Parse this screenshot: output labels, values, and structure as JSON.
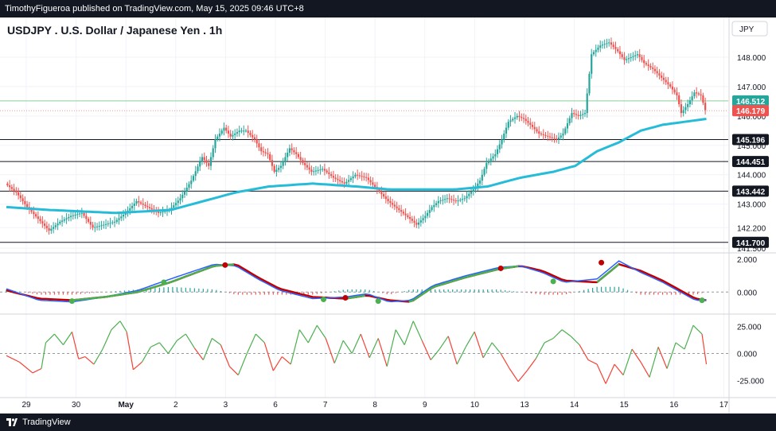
{
  "header": {
    "published_text": "TimothyFigueroa published on TradingView.com, May 15, 2025 09:46 UTC+8"
  },
  "footer": {
    "brand": "TradingView",
    "logo_icon": "tradingview-logo-icon"
  },
  "chart_data": {
    "type": "candlestick",
    "title": "USDJPY . U.S. Dollar / Japanese Yen . 1h",
    "currency": "JPY",
    "colors": {
      "up": "#26a69a",
      "down": "#ef5350",
      "ma": "#26bcd7",
      "tsi_up": "#4caf50",
      "tsi_down": "#f44336",
      "macd_fast": "#2962ff",
      "macd_slow": "#c00000"
    },
    "price_axis": {
      "ylim": [
        141.45,
        149.35
      ],
      "ticks": [
        "148.000",
        "147.000",
        "146.000",
        "145.000",
        "144.000",
        "143.000",
        "142.200",
        "141.500"
      ]
    },
    "x_axis_labels": [
      "29",
      "30",
      "May",
      "2",
      "3",
      "6",
      "7",
      "8",
      "9",
      "10",
      "13",
      "14",
      "15",
      "16",
      "17"
    ],
    "price_labels": [
      {
        "value": 146.512,
        "text": "146.512",
        "color": "#26a69a",
        "line": "#8ccf9a"
      },
      {
        "value": 146.179,
        "text": "146.179",
        "color": "#ef5350",
        "line": "#ef9a9a"
      }
    ],
    "horizontal_levels": [
      {
        "value": 145.196,
        "text": "145.196"
      },
      {
        "value": 144.451,
        "text": "144.451"
      },
      {
        "value": 143.442,
        "text": "143.442"
      },
      {
        "value": 141.7,
        "text": "141.700"
      }
    ],
    "price_path": [
      [
        0,
        143.7
      ],
      [
        5,
        143.4
      ],
      [
        10,
        142.9
      ],
      [
        15,
        142.5
      ],
      [
        20,
        142.1
      ],
      [
        25,
        142.4
      ],
      [
        30,
        142.6
      ],
      [
        35,
        142.7
      ],
      [
        40,
        142.2
      ],
      [
        45,
        142.3
      ],
      [
        50,
        142.4
      ],
      [
        55,
        142.7
      ],
      [
        60,
        143.1
      ],
      [
        65,
        142.9
      ],
      [
        70,
        142.7
      ],
      [
        75,
        142.8
      ],
      [
        80,
        143.2
      ],
      [
        85,
        143.8
      ],
      [
        90,
        144.6
      ],
      [
        93,
        144.3
      ],
      [
        96,
        145.2
      ],
      [
        100,
        145.6
      ],
      [
        103,
        145.3
      ],
      [
        107,
        145.5
      ],
      [
        110,
        145.5
      ],
      [
        114,
        145.2
      ],
      [
        117,
        144.8
      ],
      [
        120,
        144.7
      ],
      [
        123,
        144.1
      ],
      [
        126,
        144.3
      ],
      [
        130,
        144.9
      ],
      [
        133,
        144.7
      ],
      [
        136,
        144.4
      ],
      [
        140,
        144.1
      ],
      [
        145,
        144.2
      ],
      [
        150,
        143.9
      ],
      [
        155,
        143.7
      ],
      [
        160,
        144.0
      ],
      [
        165,
        143.9
      ],
      [
        170,
        143.5
      ],
      [
        175,
        143.1
      ],
      [
        180,
        142.8
      ],
      [
        185,
        142.5
      ],
      [
        188,
        142.3
      ],
      [
        192,
        142.6
      ],
      [
        195,
        142.9
      ],
      [
        198,
        143.1
      ],
      [
        202,
        143.2
      ],
      [
        206,
        143.1
      ],
      [
        210,
        143.2
      ],
      [
        214,
        143.5
      ],
      [
        217,
        143.8
      ],
      [
        220,
        144.4
      ],
      [
        224,
        144.7
      ],
      [
        227,
        145.2
      ],
      [
        230,
        145.8
      ],
      [
        234,
        146.0
      ],
      [
        237,
        145.9
      ],
      [
        240,
        145.7
      ],
      [
        244,
        145.4
      ],
      [
        248,
        145.3
      ],
      [
        252,
        145.2
      ],
      [
        255,
        145.4
      ],
      [
        259,
        146.1
      ],
      [
        262,
        146.0
      ],
      [
        265,
        146.1
      ],
      [
        268,
        148.1
      ],
      [
        272,
        148.4
      ],
      [
        276,
        148.5
      ],
      [
        280,
        148.2
      ],
      [
        283,
        147.9
      ],
      [
        286,
        148.0
      ],
      [
        289,
        148.1
      ],
      [
        292,
        147.8
      ],
      [
        296,
        147.6
      ],
      [
        300,
        147.3
      ],
      [
        304,
        147.0
      ],
      [
        307,
        146.7
      ],
      [
        309,
        146.1
      ],
      [
        312,
        146.4
      ],
      [
        315,
        146.8
      ],
      [
        318,
        146.7
      ],
      [
        320,
        146.2
      ]
    ],
    "ma_path": [
      [
        0,
        142.9
      ],
      [
        20,
        142.8
      ],
      [
        50,
        142.7
      ],
      [
        75,
        142.8
      ],
      [
        90,
        143.1
      ],
      [
        105,
        143.4
      ],
      [
        120,
        143.6
      ],
      [
        140,
        143.7
      ],
      [
        160,
        143.6
      ],
      [
        175,
        143.5
      ],
      [
        190,
        143.5
      ],
      [
        205,
        143.5
      ],
      [
        220,
        143.6
      ],
      [
        235,
        143.9
      ],
      [
        250,
        144.1
      ],
      [
        260,
        144.3
      ],
      [
        270,
        144.8
      ],
      [
        280,
        145.1
      ],
      [
        290,
        145.5
      ],
      [
        300,
        145.7
      ],
      [
        310,
        145.8
      ],
      [
        320,
        145.9
      ]
    ],
    "macd": {
      "ylim": [
        -1.2,
        2.2
      ],
      "ticks": [
        "2.000",
        "0.000"
      ],
      "fast_path": [
        [
          0,
          0.2
        ],
        [
          15,
          -0.5
        ],
        [
          30,
          -0.6
        ],
        [
          45,
          -0.3
        ],
        [
          60,
          0.1
        ],
        [
          75,
          0.8
        ],
        [
          95,
          1.7
        ],
        [
          105,
          1.6
        ],
        [
          115,
          0.8
        ],
        [
          125,
          0.1
        ],
        [
          140,
          -0.4
        ],
        [
          155,
          -0.3
        ],
        [
          165,
          -0.1
        ],
        [
          175,
          -0.6
        ],
        [
          185,
          -0.5
        ],
        [
          195,
          0.4
        ],
        [
          210,
          1.0
        ],
        [
          225,
          1.5
        ],
        [
          235,
          1.6
        ],
        [
          245,
          1.2
        ],
        [
          255,
          0.6
        ],
        [
          270,
          0.8
        ],
        [
          280,
          1.9
        ],
        [
          290,
          1.2
        ],
        [
          300,
          0.6
        ],
        [
          315,
          -0.5
        ],
        [
          320,
          -0.5
        ]
      ],
      "slow_path": [
        [
          0,
          0.1
        ],
        [
          15,
          -0.4
        ],
        [
          30,
          -0.5
        ],
        [
          45,
          -0.3
        ],
        [
          60,
          0.0
        ],
        [
          75,
          0.6
        ],
        [
          95,
          1.6
        ],
        [
          105,
          1.7
        ],
        [
          115,
          0.9
        ],
        [
          125,
          0.2
        ],
        [
          140,
          -0.3
        ],
        [
          155,
          -0.4
        ],
        [
          165,
          -0.2
        ],
        [
          175,
          -0.5
        ],
        [
          185,
          -0.6
        ],
        [
          195,
          0.3
        ],
        [
          210,
          0.9
        ],
        [
          225,
          1.4
        ],
        [
          235,
          1.6
        ],
        [
          245,
          1.3
        ],
        [
          255,
          0.7
        ],
        [
          270,
          0.6
        ],
        [
          280,
          1.7
        ],
        [
          290,
          1.3
        ],
        [
          300,
          0.7
        ],
        [
          315,
          -0.4
        ],
        [
          320,
          -0.5
        ]
      ],
      "cross_dots": [
        {
          "x": 30,
          "y": -0.55,
          "kind": "up"
        },
        {
          "x": 72,
          "y": 0.6,
          "kind": "up"
        },
        {
          "x": 100,
          "y": 1.65,
          "kind": "down"
        },
        {
          "x": 145,
          "y": -0.45,
          "kind": "up"
        },
        {
          "x": 155,
          "y": -0.35,
          "kind": "down"
        },
        {
          "x": 170,
          "y": -0.55,
          "kind": "up"
        },
        {
          "x": 226,
          "y": 1.45,
          "kind": "down"
        },
        {
          "x": 250,
          "y": 0.65,
          "kind": "up"
        },
        {
          "x": 272,
          "y": 1.8,
          "kind": "down"
        },
        {
          "x": 318,
          "y": -0.5,
          "kind": "up"
        }
      ]
    },
    "tsi": {
      "ylim": [
        -35,
        35
      ],
      "ticks": [
        "25.000",
        "0.000",
        "-25.000"
      ],
      "path": [
        [
          0,
          -2
        ],
        [
          6,
          -8
        ],
        [
          12,
          -18
        ],
        [
          16,
          -14
        ],
        [
          18,
          10
        ],
        [
          22,
          18
        ],
        [
          26,
          8
        ],
        [
          30,
          20
        ],
        [
          33,
          -5
        ],
        [
          36,
          -3
        ],
        [
          40,
          -10
        ],
        [
          44,
          4
        ],
        [
          48,
          22
        ],
        [
          52,
          30
        ],
        [
          55,
          20
        ],
        [
          58,
          -15
        ],
        [
          62,
          -8
        ],
        [
          66,
          6
        ],
        [
          70,
          10
        ],
        [
          74,
          0
        ],
        [
          78,
          12
        ],
        [
          82,
          18
        ],
        [
          86,
          5
        ],
        [
          90,
          -6
        ],
        [
          94,
          14
        ],
        [
          98,
          8
        ],
        [
          102,
          -12
        ],
        [
          106,
          -20
        ],
        [
          110,
          0
        ],
        [
          114,
          18
        ],
        [
          118,
          10
        ],
        [
          122,
          -16
        ],
        [
          126,
          -3
        ],
        [
          130,
          -10
        ],
        [
          134,
          22
        ],
        [
          138,
          10
        ],
        [
          142,
          26
        ],
        [
          146,
          14
        ],
        [
          150,
          -9
        ],
        [
          154,
          12
        ],
        [
          158,
          0
        ],
        [
          162,
          18
        ],
        [
          166,
          -4
        ],
        [
          170,
          14
        ],
        [
          174,
          -12
        ],
        [
          178,
          22
        ],
        [
          182,
          8
        ],
        [
          186,
          30
        ],
        [
          190,
          12
        ],
        [
          194,
          -6
        ],
        [
          198,
          4
        ],
        [
          202,
          16
        ],
        [
          206,
          -10
        ],
        [
          210,
          6
        ],
        [
          214,
          20
        ],
        [
          218,
          -4
        ],
        [
          222,
          10
        ],
        [
          226,
          0
        ],
        [
          230,
          -14
        ],
        [
          234,
          -26
        ],
        [
          238,
          -16
        ],
        [
          242,
          -5
        ],
        [
          246,
          10
        ],
        [
          250,
          14
        ],
        [
          254,
          22
        ],
        [
          258,
          16
        ],
        [
          262,
          8
        ],
        [
          266,
          -6
        ],
        [
          270,
          -10
        ],
        [
          274,
          -28
        ],
        [
          278,
          -10
        ],
        [
          282,
          -20
        ],
        [
          286,
          4
        ],
        [
          290,
          -8
        ],
        [
          294,
          -22
        ],
        [
          298,
          6
        ],
        [
          302,
          -14
        ],
        [
          306,
          10
        ],
        [
          310,
          4
        ],
        [
          314,
          26
        ],
        [
          318,
          18
        ],
        [
          320,
          -10
        ]
      ]
    }
  }
}
